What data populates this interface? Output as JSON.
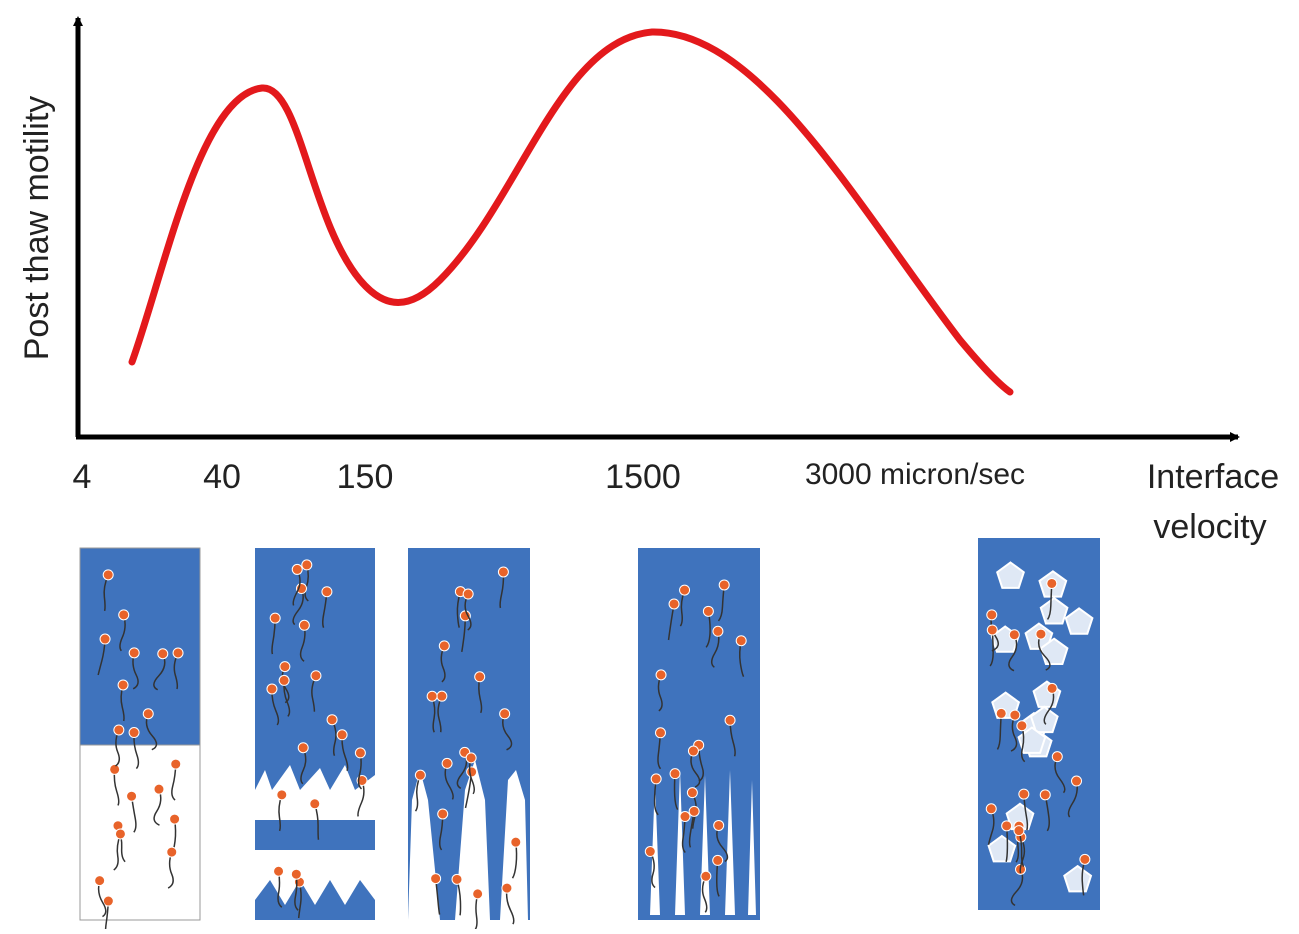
{
  "y_axis": {
    "label": "Post thaw motility"
  },
  "x_axis": {
    "label_line1": "Interface",
    "label_line2": "velocity",
    "tick_labels": [
      "4",
      "40",
      "150",
      "1500",
      "3000 micron/sec"
    ]
  }
}
